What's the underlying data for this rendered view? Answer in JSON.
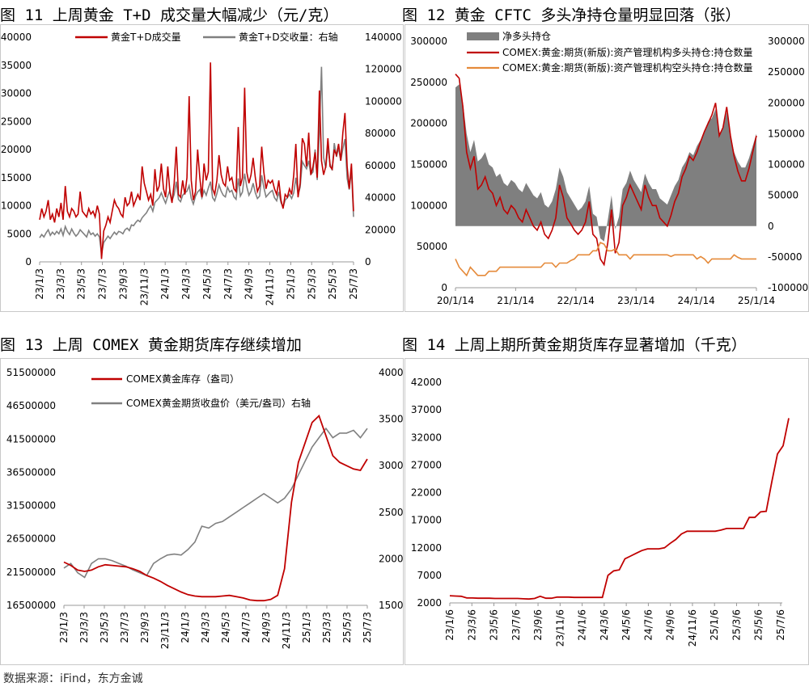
{
  "source": "数据来源：iFind，东方金诚",
  "titles": {
    "fig11": "图 11  上周黄金 T+D 成交量大幅减少（元/克）",
    "fig12": "图 12  黄金 CFTC 多头净持仓量明显回落（张）",
    "fig13": "图 13  上周 COMEX 黄金期货库存继续增加",
    "fig14": "图 14  上周上期所黄金期货库存显著增加（千克）"
  },
  "colors": {
    "red": "#c00000",
    "gray": "#808080",
    "dark_gray": "#7f7f7f",
    "orange": "#e58a3a"
  },
  "chart_data": [
    {
      "id": "fig11",
      "type": "line",
      "title": "图 11  上周黄金 T+D 成交量大幅减少（元/克）",
      "x_ticks": [
        "23/1/3",
        "23/3/3",
        "23/5/3",
        "23/7/3",
        "23/9/3",
        "23/11/3",
        "24/1/3",
        "24/3/3",
        "24/5/3",
        "24/7/3",
        "24/9/3",
        "24/11/3",
        "25/1/3",
        "25/3/3",
        "25/5/3",
        "25/7/3"
      ],
      "ylim_left": [
        0,
        40000
      ],
      "yticks_left": [
        0,
        5000,
        10000,
        15000,
        20000,
        25000,
        30000,
        35000,
        40000
      ],
      "ylim_right": [
        0,
        140000
      ],
      "yticks_right": [
        0,
        20000,
        40000,
        60000,
        80000,
        100000,
        120000,
        140000
      ],
      "legend": "top",
      "series": [
        {
          "name": "黄金T+D成交量",
          "axis": "left",
          "color": "#c00000",
          "values": [
            7500,
            9500,
            8000,
            9000,
            11000,
            7500,
            8500,
            7000,
            9500,
            8000,
            10500,
            7500,
            13500,
            9000,
            8000,
            9500,
            9000,
            8000,
            8500,
            12500,
            9000,
            8500,
            8000,
            9500,
            8500,
            9000,
            8000,
            10000,
            8500,
            500,
            5500,
            6500,
            8000,
            7000,
            9000,
            11000,
            10000,
            9500,
            8500,
            8000,
            11500,
            10000,
            10500,
            12500,
            10000,
            11000,
            12000,
            11000,
            17000,
            14000,
            12500,
            11000,
            12000,
            10000,
            16500,
            12500,
            13500,
            17500,
            13000,
            11500,
            17000,
            12500,
            10500,
            14000,
            20500,
            12000,
            11500,
            14500,
            12000,
            15000,
            29500,
            14500,
            11000,
            12500,
            20000,
            15000,
            11500,
            17500,
            14500,
            16000,
            35500,
            13000,
            12000,
            14500,
            19000,
            15500,
            14000,
            13500,
            17000,
            14500,
            15000,
            13000,
            12500,
            24000,
            13500,
            15000,
            31000,
            16000,
            14000,
            15500,
            18500,
            15000,
            12500,
            13500,
            20500,
            16000,
            13000,
            14500,
            14000,
            14500,
            13000,
            12000,
            14500,
            11000,
            9500,
            12000,
            11500,
            13000,
            12000,
            15500,
            21000,
            11500,
            14000,
            22000,
            21000,
            17000,
            23000,
            15500,
            17000,
            19500,
            15000,
            30500,
            18000,
            15500,
            17000,
            22000,
            17000,
            16500,
            20000,
            19000,
            21000,
            18000,
            23000,
            26500,
            17000,
            13000,
            17500,
            9000
          ]
        },
        {
          "name": "黄金T+D交收量：右轴",
          "axis": "right",
          "color": "#808080",
          "values": [
            15000,
            17000,
            15500,
            18000,
            20000,
            16500,
            18500,
            17000,
            19000,
            17500,
            20500,
            16500,
            22000,
            19000,
            17000,
            20500,
            18000,
            16000,
            17500,
            20000,
            18500,
            17000,
            15500,
            19500,
            17000,
            18000,
            16000,
            17500,
            15500,
            5000,
            12000,
            14000,
            16000,
            14500,
            16500,
            18500,
            17000,
            19000,
            18500,
            17500,
            20000,
            21000,
            19500,
            23000,
            22500,
            24500,
            26000,
            25000,
            27500,
            29000,
            30500,
            33000,
            35000,
            31500,
            37000,
            38500,
            40000,
            43000,
            39500,
            36500,
            41000,
            44500,
            38000,
            42000,
            50000,
            39000,
            37500,
            41500,
            43000,
            44000,
            47500,
            39500,
            36000,
            41000,
            43500,
            45000,
            40000,
            44500,
            41500,
            46000,
            50000,
            40000,
            38000,
            42500,
            48000,
            44000,
            41500,
            40500,
            46500,
            43500,
            44500,
            40500,
            39000,
            52000,
            41000,
            43500,
            55000,
            47000,
            41500,
            44000,
            49000,
            43000,
            39500,
            41000,
            54000,
            46500,
            40500,
            42000,
            43500,
            44500,
            40000,
            38000,
            43500,
            37000,
            34000,
            38500,
            40000,
            42000,
            39500,
            43000,
            52500,
            42000,
            46500,
            62500,
            60000,
            58000,
            63000,
            54500,
            56000,
            70000,
            51000,
            80500,
            121500,
            65000,
            58500,
            72000,
            61000,
            57000,
            74000,
            65500,
            71000,
            63000,
            70500,
            76500,
            52000,
            45000,
            57500,
            28000
          ]
        }
      ]
    },
    {
      "id": "fig12",
      "type": "area",
      "title": "图 12  黄金 CFTC 多头净持仓量明显回落（张）",
      "x_ticks": [
        "20/1/14",
        "21/1/14",
        "22/1/14",
        "23/1/14",
        "24/1/14",
        "25/1/14"
      ],
      "ylim_left": [
        0,
        300000
      ],
      "yticks_left": [
        0,
        50000,
        100000,
        150000,
        200000,
        250000,
        300000
      ],
      "ylim_right": [
        -100000,
        300000
      ],
      "yticks_right": [
        -100000,
        -50000,
        0,
        50000,
        100000,
        150000,
        200000,
        250000,
        300000
      ],
      "legend": "top",
      "series": [
        {
          "name": "净多头持仓",
          "axis": "right",
          "kind": "area",
          "color": "#7f7f7f",
          "values": [
            225000,
            230000,
            200000,
            150000,
            120000,
            140000,
            105000,
            110000,
            120000,
            100000,
            95000,
            80000,
            85000,
            70000,
            65000,
            75000,
            70000,
            60000,
            55000,
            70000,
            60000,
            50000,
            45000,
            55000,
            35000,
            30000,
            40000,
            60000,
            95000,
            80000,
            55000,
            45000,
            35000,
            25000,
            30000,
            40000,
            65000,
            20000,
            15000,
            -20000,
            -25000,
            10000,
            50000,
            -5000,
            15000,
            60000,
            70000,
            90000,
            75000,
            65000,
            55000,
            85000,
            70000,
            60000,
            60000,
            45000,
            40000,
            35000,
            50000,
            65000,
            75000,
            95000,
            105000,
            120000,
            115000,
            130000,
            140000,
            155000,
            170000,
            175000,
            190000,
            150000,
            160000,
            185000,
            150000,
            120000,
            105000,
            95000,
            95000,
            110000,
            130000,
            150000
          ]
        },
        {
          "name": "COMEX:黄金:期货(新版):资产管理机构多头持仓:持仓数量",
          "axis": "left",
          "kind": "line",
          "color": "#c00000",
          "values": [
            260000,
            255000,
            220000,
            165000,
            145000,
            160000,
            120000,
            125000,
            135000,
            120000,
            115000,
            100000,
            110000,
            95000,
            90000,
            100000,
            95000,
            85000,
            80000,
            95000,
            85000,
            75000,
            70000,
            80000,
            65000,
            60000,
            70000,
            85000,
            125000,
            110000,
            85000,
            78000,
            70000,
            65000,
            70000,
            80000,
            105000,
            65000,
            60000,
            35000,
            28000,
            55000,
            95000,
            42000,
            55000,
            100000,
            110000,
            125000,
            115000,
            105000,
            95000,
            125000,
            110000,
            100000,
            100000,
            85000,
            80000,
            75000,
            88000,
            105000,
            115000,
            135000,
            145000,
            160000,
            155000,
            165000,
            178000,
            190000,
            200000,
            210000,
            225000,
            185000,
            195000,
            220000,
            185000,
            160000,
            142000,
            130000,
            130000,
            145000,
            165000,
            185000
          ]
        },
        {
          "name": "COMEX:黄金:期货(新版):资产管理机构空头持仓:持仓数量",
          "axis": "left",
          "kind": "line",
          "color": "#e58a3a",
          "values": [
            35000,
            25000,
            20000,
            15000,
            25000,
            20000,
            15000,
            15000,
            15000,
            20000,
            20000,
            20000,
            25000,
            25000,
            25000,
            25000,
            25000,
            25000,
            25000,
            25000,
            25000,
            25000,
            25000,
            25000,
            30000,
            30000,
            30000,
            25000,
            30000,
            30000,
            30000,
            33000,
            35000,
            40000,
            40000,
            40000,
            40000,
            45000,
            45000,
            55000,
            53000,
            45000,
            45000,
            47000,
            40000,
            40000,
            40000,
            35000,
            40000,
            40000,
            40000,
            40000,
            40000,
            40000,
            40000,
            40000,
            40000,
            40000,
            38000,
            40000,
            40000,
            40000,
            40000,
            40000,
            40000,
            35000,
            38000,
            35000,
            30000,
            35000,
            35000,
            35000,
            35000,
            35000,
            35000,
            40000,
            37000,
            35000,
            35000,
            35000,
            35000,
            35000
          ]
        }
      ]
    },
    {
      "id": "fig13",
      "type": "line",
      "title": "图 13  上周 COMEX 黄金期货库存继续增加",
      "x_ticks": [
        "23/1/3",
        "23/3/3",
        "23/5/3",
        "23/7/3",
        "23/9/3",
        "23/11/3",
        "24/1/3",
        "24/3/3",
        "24/5/3",
        "24/7/3",
        "24/9/3",
        "24/11/3",
        "25/1/3",
        "25/3/3",
        "25/5/3",
        "25/7/3"
      ],
      "ylim_left": [
        16500000,
        51500000
      ],
      "yticks_left": [
        16500000,
        21500000,
        26500000,
        31500000,
        36500000,
        41500000,
        46500000,
        51500000
      ],
      "ylim_right": [
        1500,
        4000
      ],
      "yticks_right": [
        1500,
        2000,
        2500,
        3000,
        3500,
        4000
      ],
      "legend": "top",
      "series": [
        {
          "name": "COMEX黄金库存（盎司）",
          "axis": "left",
          "color": "#c00000",
          "values": [
            23000000,
            22500000,
            21800000,
            21600000,
            21800000,
            22300000,
            22600000,
            22500000,
            22400000,
            22300000,
            22000000,
            21600000,
            21000000,
            20600000,
            20100000,
            19500000,
            19000000,
            18500000,
            18100000,
            17900000,
            17800000,
            17800000,
            17800000,
            17900000,
            18000000,
            17800000,
            17600000,
            17300000,
            17200000,
            17200000,
            17400000,
            18000000,
            22000000,
            32000000,
            38000000,
            41000000,
            44000000,
            45000000,
            42000000,
            39000000,
            38000000,
            37500000,
            37000000,
            36800000,
            38500000
          ]
        },
        {
          "name": "COMEX黄金期货收盘价（美元/盎司）右轴",
          "axis": "right",
          "color": "#808080",
          "values": [
            1900,
            1950,
            1850,
            1800,
            1950,
            2000,
            2000,
            1980,
            1950,
            1920,
            1880,
            1850,
            1820,
            1950,
            2000,
            2040,
            2050,
            2040,
            2100,
            2180,
            2350,
            2330,
            2380,
            2400,
            2450,
            2500,
            2550,
            2600,
            2650,
            2700,
            2650,
            2600,
            2650,
            2750,
            2900,
            3050,
            3200,
            3300,
            3400,
            3300,
            3350,
            3350,
            3380,
            3300,
            3400
          ]
        }
      ]
    },
    {
      "id": "fig14",
      "type": "line",
      "title": "图 14  上周上期所黄金期货库存显著增加（千克）",
      "x_ticks": [
        "23/1/6",
        "23/3/6",
        "23/5/6",
        "23/7/6",
        "23/9/6",
        "23/11/6",
        "24/1/6",
        "24/3/6",
        "24/5/6",
        "24/7/6",
        "24/9/6",
        "24/11/6",
        "25/1/6",
        "25/3/6",
        "25/5/6",
        "25/7/6"
      ],
      "ylim": [
        2000,
        42000
      ],
      "yticks": [
        2000,
        7000,
        12000,
        17000,
        22000,
        27000,
        32000,
        37000,
        42000
      ],
      "series": [
        {
          "name": "上期所黄金期货库存",
          "color": "#c00000",
          "values": [
            3300,
            3250,
            3200,
            2900,
            2900,
            2850,
            2850,
            2850,
            2800,
            2800,
            2800,
            2800,
            2800,
            2750,
            2700,
            2800,
            3200,
            2850,
            2850,
            3050,
            3050,
            3050,
            3000,
            3000,
            3000,
            3000,
            3000,
            3000,
            7000,
            7800,
            8000,
            10000,
            10500,
            11000,
            11500,
            11800,
            11800,
            11800,
            12000,
            12800,
            13500,
            14500,
            15000,
            15000,
            15000,
            15000,
            15000,
            15000,
            15200,
            15500,
            15500,
            15500,
            15500,
            17500,
            17500,
            18500,
            18600,
            24000,
            29000,
            30500,
            35500
          ]
        }
      ]
    }
  ]
}
